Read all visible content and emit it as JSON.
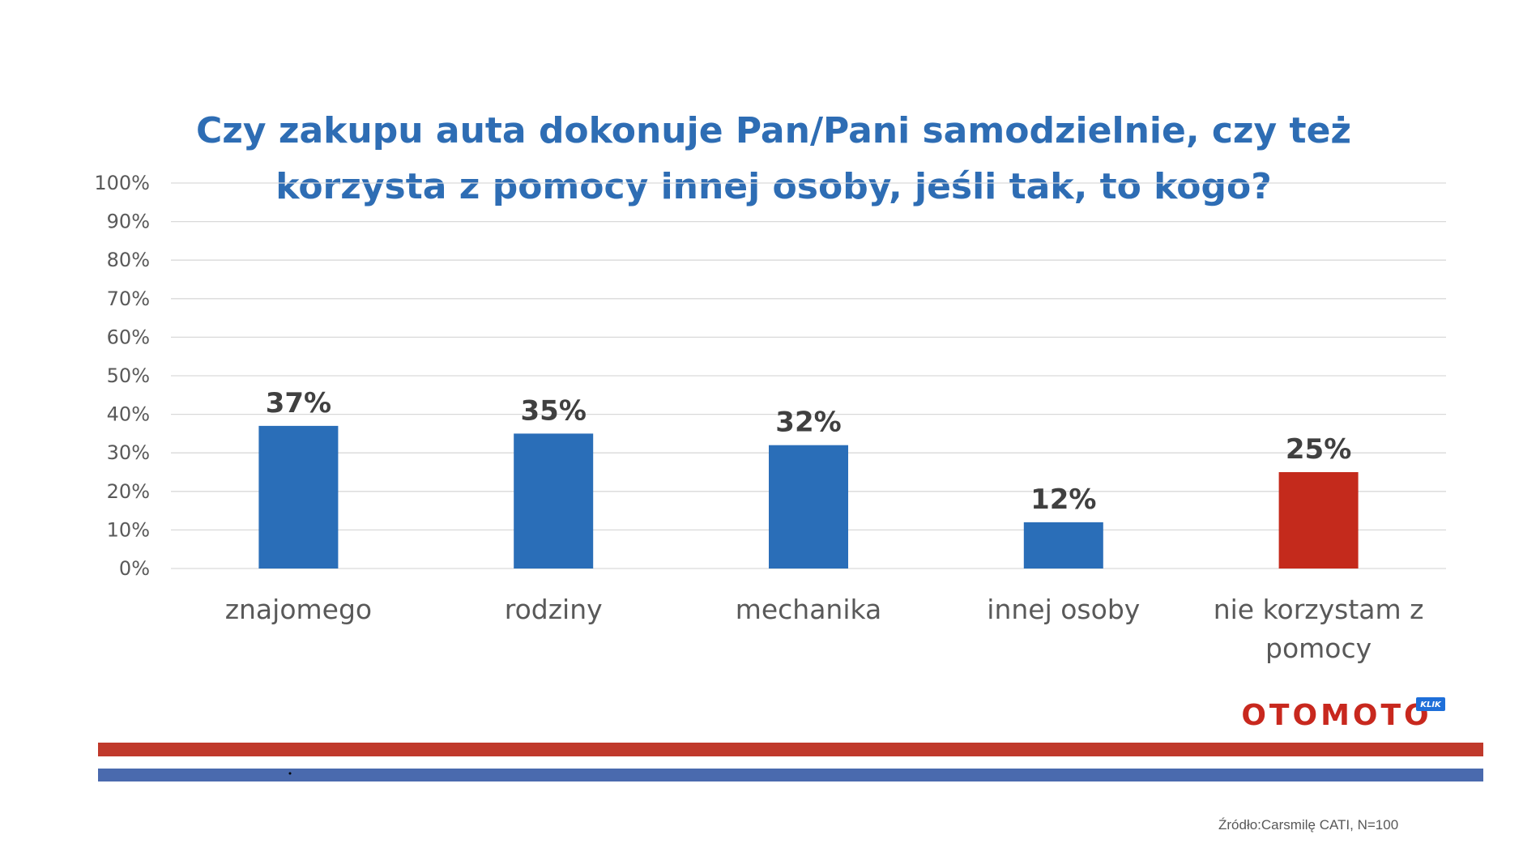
{
  "title_lines": [
    "Czy zakupu auta dokonuje Pan/Pani samodzielnie, czy też",
    "korzysta z pomocy innej osoby, jeśli tak, to kogo?"
  ],
  "chart_data": {
    "type": "bar",
    "title": "Czy zakupu auta dokonuje Pan/Pani samodzielnie, czy też korzysta z pomocy innej osoby, jeśli tak, to kogo?",
    "categories": [
      "znajomego",
      "rodziny",
      "mechanika",
      "innej osoby",
      "nie korzystam z pomocy"
    ],
    "category_lines": [
      [
        "znajomego"
      ],
      [
        "rodziny"
      ],
      [
        "mechanika"
      ],
      [
        "innej osoby"
      ],
      [
        "nie korzystam z",
        "pomocy"
      ]
    ],
    "values": [
      37,
      35,
      32,
      12,
      25
    ],
    "value_labels": [
      "37%",
      "35%",
      "32%",
      "12%",
      "25%"
    ],
    "bar_colors": [
      "#2A6EB8",
      "#2A6EB8",
      "#2A6EB8",
      "#2A6EB8",
      "#C42A1C"
    ],
    "ylim": [
      0,
      100
    ],
    "y_ticks": [
      0,
      10,
      20,
      30,
      40,
      50,
      60,
      70,
      80,
      90,
      100
    ],
    "y_tick_labels": [
      "0%",
      "10%",
      "20%",
      "30%",
      "40%",
      "50%",
      "60%",
      "70%",
      "80%",
      "90%",
      "100%"
    ],
    "grid": true,
    "xlabel": "",
    "ylabel": ""
  },
  "logo": {
    "text": "OTOMOTO",
    "badge": "KLIK",
    "text_color": "#C8281E",
    "badge_color": "#1E6FD9"
  },
  "stripes": {
    "top_color": "#C0392B",
    "bottom_color": "#4A6AAE"
  },
  "source": "Źródło:Carsmilę CATI, N=100"
}
